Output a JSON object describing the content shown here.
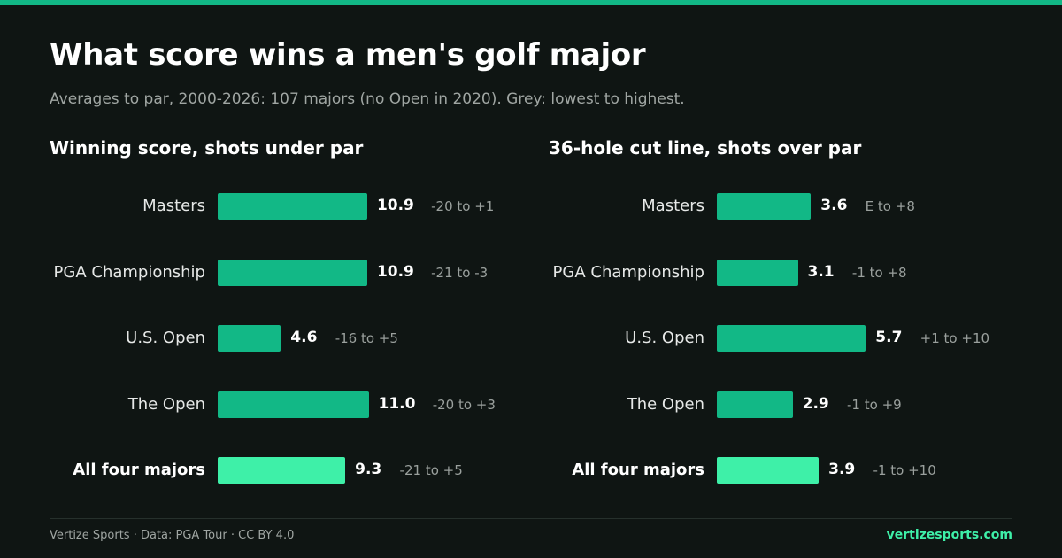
{
  "header": {
    "title": "What score wins a men's golf major",
    "subtitle": "Averages to par, 2000-2026: 107 majors (no Open in 2020). Grey: lowest to highest."
  },
  "footer": {
    "credit": "Vertize Sports · Data: PGA Tour · CC BY 4.0",
    "site": "vertizesports.com"
  },
  "colors": {
    "bar": "#12b886",
    "bar_total": "#3ef0a8",
    "background": "#0f1513",
    "accent": "#12b886"
  },
  "chart_data": [
    {
      "type": "bar",
      "orientation": "horizontal",
      "title": "Winning score, shots under par",
      "xlim": [
        0,
        12
      ],
      "grid": false,
      "categories": [
        "Masters",
        "PGA Championship",
        "U.S. Open",
        "The Open",
        "All four majors"
      ],
      "values": [
        10.9,
        10.9,
        4.6,
        11.0,
        9.3
      ],
      "value_labels": [
        "10.9",
        "10.9",
        "4.6",
        "11.0",
        "9.3"
      ],
      "ranges": [
        "-20 to +1",
        "-21 to -3",
        "-16 to +5",
        "-20 to +3",
        "-21 to +5"
      ],
      "highlight_index": 4
    },
    {
      "type": "bar",
      "orientation": "horizontal",
      "title": "36-hole cut line, shots over par",
      "xlim": [
        0,
        6.3
      ],
      "grid": false,
      "categories": [
        "Masters",
        "PGA Championship",
        "U.S. Open",
        "The Open",
        "All four majors"
      ],
      "values": [
        3.6,
        3.1,
        5.7,
        2.9,
        3.9
      ],
      "value_labels": [
        "3.6",
        "3.1",
        "5.7",
        "2.9",
        "3.9"
      ],
      "ranges": [
        "E to +8",
        "-1 to +8",
        "+1 to +10",
        "-1 to +9",
        "-1 to +10"
      ],
      "highlight_index": 4
    }
  ]
}
